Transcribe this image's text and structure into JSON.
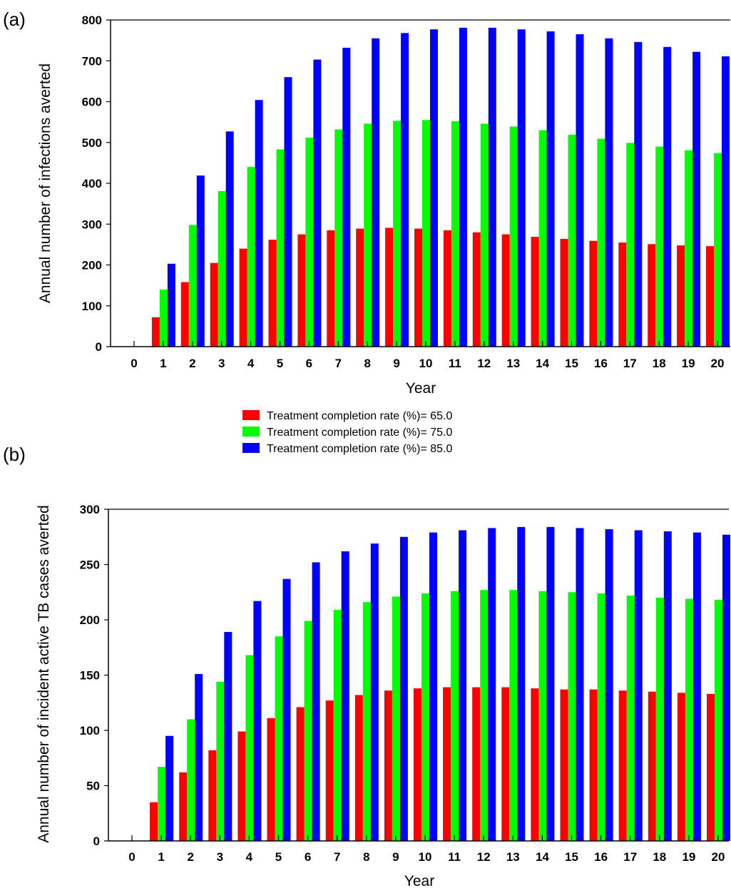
{
  "chart_data": [
    {
      "type": "bar",
      "panel_label": "(a)",
      "xlabel": "Year",
      "ylabel": "Annual number of infections averted",
      "ylim": [
        0,
        800
      ],
      "yticks": [
        0,
        100,
        200,
        300,
        400,
        500,
        600,
        700,
        800
      ],
      "categories": [
        "0",
        "1",
        "2",
        "3",
        "4",
        "5",
        "6",
        "7",
        "8",
        "9",
        "10",
        "11",
        "12",
        "13",
        "14",
        "15",
        "16",
        "17",
        "18",
        "19",
        "20"
      ],
      "grid": false,
      "series": [
        {
          "name": "Treatment completion rate (%)= 65.0",
          "color": "#ff0000",
          "values": [
            0,
            72,
            158,
            205,
            240,
            262,
            275,
            285,
            289,
            291,
            289,
            285,
            280,
            275,
            269,
            264,
            259,
            255,
            251,
            248,
            246
          ]
        },
        {
          "name": "Treatment completion rate (%)= 75.0",
          "color": "#00ff00",
          "values": [
            0,
            140,
            298,
            381,
            440,
            483,
            512,
            532,
            546,
            553,
            555,
            552,
            546,
            539,
            530,
            519,
            509,
            499,
            490,
            481,
            474
          ]
        },
        {
          "name": "Treatment completion rate (%)= 85.0",
          "color": "#0000ff",
          "values": [
            0,
            203,
            419,
            527,
            604,
            660,
            703,
            732,
            755,
            768,
            777,
            781,
            781,
            777,
            772,
            765,
            755,
            746,
            734,
            722,
            711
          ]
        }
      ]
    },
    {
      "type": "bar",
      "panel_label": "(b)",
      "xlabel": "Year",
      "ylabel": "Annual number of incident active TB cases averted",
      "ylim": [
        0,
        300
      ],
      "yticks": [
        0,
        50,
        100,
        150,
        200,
        250,
        300
      ],
      "categories": [
        "0",
        "1",
        "2",
        "3",
        "4",
        "5",
        "6",
        "7",
        "8",
        "9",
        "10",
        "11",
        "12",
        "13",
        "14",
        "15",
        "16",
        "17",
        "18",
        "19",
        "20"
      ],
      "grid": false,
      "series": [
        {
          "name": "Treatment completion rate (%)= 65.0",
          "color": "#ff0000",
          "values": [
            0,
            35,
            62,
            82,
            99,
            111,
            121,
            127,
            132,
            136,
            138,
            139,
            139,
            139,
            138,
            137,
            137,
            136,
            135,
            134,
            133
          ]
        },
        {
          "name": "Treatment completion rate (%)= 75.0",
          "color": "#00ff00",
          "values": [
            0,
            67,
            110,
            144,
            168,
            185,
            199,
            209,
            216,
            221,
            224,
            226,
            227,
            227,
            226,
            225,
            224,
            222,
            220,
            219,
            218
          ]
        },
        {
          "name": "Treatment completion rate (%)= 85.0",
          "color": "#0000ff",
          "values": [
            0,
            95,
            151,
            189,
            217,
            237,
            252,
            262,
            269,
            275,
            279,
            281,
            283,
            284,
            284,
            283,
            282,
            281,
            280,
            279,
            277
          ]
        }
      ]
    }
  ],
  "legend": {
    "placement": "between-panels-center",
    "entries": [
      {
        "label": "Treatment completion rate (%)= 65.0",
        "color": "#ff0000"
      },
      {
        "label": "Treatment completion rate (%)= 75.0",
        "color": "#00ff00"
      },
      {
        "label": "Treatment completion rate (%)= 85.0",
        "color": "#0000ff"
      }
    ]
  }
}
